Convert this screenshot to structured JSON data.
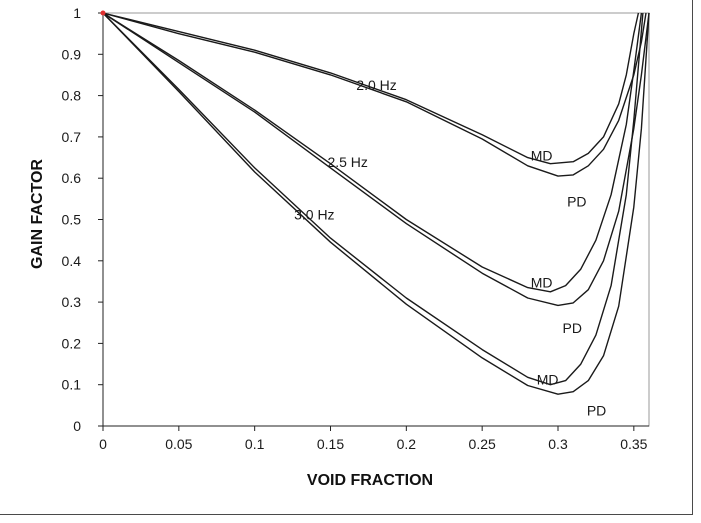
{
  "chart_data": {
    "type": "line",
    "title": "",
    "xlabel": "VOID FRACTION",
    "ylabel": "GAIN FACTOR",
    "xlim": [
      0,
      0.36
    ],
    "ylim": [
      0,
      1
    ],
    "x_ticks": [
      "0",
      "0.05",
      "0.1",
      "0.15",
      "0.2",
      "0.25",
      "0.3",
      "0.35"
    ],
    "y_ticks": [
      "0",
      "0.1",
      "0.2",
      "0.3",
      "0.4",
      "0.5",
      "0.6",
      "0.7",
      "0.8",
      "0.9",
      "1"
    ],
    "grid": false,
    "line_color": "#1a1a1a",
    "origin_marker_color": "#e03030",
    "series": [
      {
        "x": [
          0,
          0.05,
          0.1,
          0.15,
          0.2,
          0.25,
          0.28,
          0.295,
          0.31,
          0.32,
          0.33,
          0.34,
          0.345,
          0.35,
          0.353
        ],
        "y": [
          1.0,
          0.955,
          0.91,
          0.855,
          0.79,
          0.705,
          0.65,
          0.635,
          0.64,
          0.66,
          0.7,
          0.78,
          0.85,
          0.95,
          1.0
        ]
      },
      {
        "x": [
          0,
          0.05,
          0.1,
          0.15,
          0.2,
          0.25,
          0.28,
          0.3,
          0.31,
          0.32,
          0.33,
          0.34,
          0.35,
          0.355,
          0.358
        ],
        "y": [
          1.0,
          0.95,
          0.905,
          0.85,
          0.785,
          0.695,
          0.63,
          0.605,
          0.608,
          0.63,
          0.67,
          0.74,
          0.85,
          0.93,
          1.0
        ]
      },
      {
        "x": [
          0,
          0.05,
          0.1,
          0.15,
          0.2,
          0.25,
          0.28,
          0.295,
          0.305,
          0.315,
          0.325,
          0.335,
          0.345,
          0.35,
          0.355
        ],
        "y": [
          1.0,
          0.885,
          0.765,
          0.635,
          0.5,
          0.385,
          0.335,
          0.325,
          0.34,
          0.38,
          0.45,
          0.56,
          0.73,
          0.86,
          1.0
        ]
      },
      {
        "x": [
          0,
          0.05,
          0.1,
          0.15,
          0.2,
          0.25,
          0.28,
          0.3,
          0.31,
          0.32,
          0.33,
          0.34,
          0.35,
          0.355,
          0.36
        ],
        "y": [
          1.0,
          0.88,
          0.76,
          0.625,
          0.49,
          0.37,
          0.31,
          0.292,
          0.298,
          0.33,
          0.4,
          0.52,
          0.72,
          0.85,
          1.0
        ]
      },
      {
        "x": [
          0,
          0.05,
          0.1,
          0.15,
          0.2,
          0.25,
          0.28,
          0.295,
          0.305,
          0.315,
          0.325,
          0.335,
          0.345,
          0.35,
          0.356
        ],
        "y": [
          1.0,
          0.815,
          0.625,
          0.455,
          0.31,
          0.185,
          0.118,
          0.1,
          0.11,
          0.15,
          0.22,
          0.34,
          0.56,
          0.74,
          1.0
        ]
      },
      {
        "x": [
          0,
          0.05,
          0.1,
          0.15,
          0.2,
          0.25,
          0.28,
          0.3,
          0.31,
          0.32,
          0.33,
          0.34,
          0.35,
          0.355,
          0.36
        ],
        "y": [
          1.0,
          0.81,
          0.615,
          0.445,
          0.295,
          0.165,
          0.098,
          0.077,
          0.083,
          0.11,
          0.17,
          0.29,
          0.53,
          0.72,
          1.0
        ]
      }
    ],
    "annotations": [
      {
        "text": "2.0 Hz",
        "x": 0.167,
        "y": 0.813
      },
      {
        "text": "2.5 Hz",
        "x": 0.148,
        "y": 0.627
      },
      {
        "text": "3.0 Hz",
        "x": 0.126,
        "y": 0.5
      },
      {
        "text": "MD",
        "x": 0.282,
        "y": 0.643
      },
      {
        "text": "PD",
        "x": 0.306,
        "y": 0.532
      },
      {
        "text": "MD",
        "x": 0.282,
        "y": 0.335
      },
      {
        "text": "PD",
        "x": 0.303,
        "y": 0.225
      },
      {
        "text": "MD",
        "x": 0.286,
        "y": 0.1
      },
      {
        "text": "PD",
        "x": 0.319,
        "y": 0.025
      }
    ]
  }
}
